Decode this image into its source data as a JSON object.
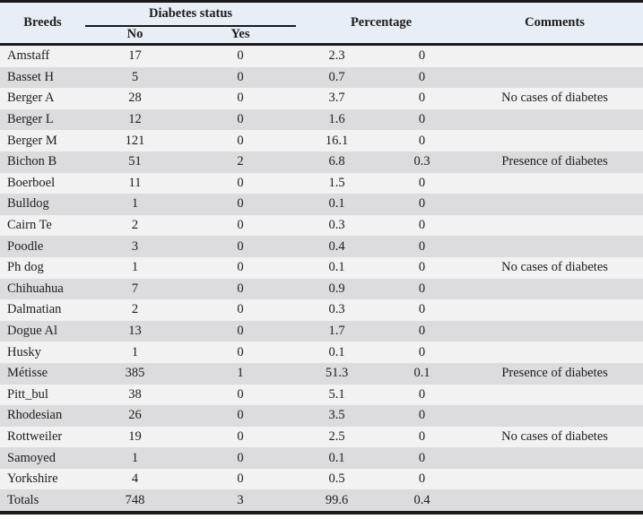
{
  "colors": {
    "header_bg": "#e8eef6",
    "row_light": "#f2f2f3",
    "row_dark": "#dcdcde",
    "rule": "#1a1a1a",
    "text": "#1c1c1c"
  },
  "table": {
    "headers": {
      "breeds": "Breeds",
      "diabetes_status": "Diabetes status",
      "no": "No",
      "yes": "Yes",
      "percentage": "Percentage",
      "comments": "Comments"
    },
    "rows": [
      {
        "breed": "Amstaff",
        "no": "17",
        "yes": "0",
        "pct_no": "2.3",
        "pct_yes": "0",
        "comment": ""
      },
      {
        "breed": "Basset H",
        "no": "5",
        "yes": "0",
        "pct_no": "0.7",
        "pct_yes": "0",
        "comment": ""
      },
      {
        "breed": "Berger A",
        "no": "28",
        "yes": "0",
        "pct_no": "3.7",
        "pct_yes": "0",
        "comment": "No cases of diabetes"
      },
      {
        "breed": "Berger L",
        "no": "12",
        "yes": "0",
        "pct_no": "1.6",
        "pct_yes": "0",
        "comment": ""
      },
      {
        "breed": "Berger M",
        "no": "121",
        "yes": "0",
        "pct_no": "16.1",
        "pct_yes": "0",
        "comment": ""
      },
      {
        "breed": "Bichon B",
        "no": "51",
        "yes": "2",
        "pct_no": "6.8",
        "pct_yes": "0.3",
        "comment": "Presence of diabetes"
      },
      {
        "breed": "Boerboel",
        "no": "11",
        "yes": "0",
        "pct_no": "1.5",
        "pct_yes": "0",
        "comment": ""
      },
      {
        "breed": "Bulldog",
        "no": "1",
        "yes": "0",
        "pct_no": "0.1",
        "pct_yes": "0",
        "comment": ""
      },
      {
        "breed": "Cairn Te",
        "no": "2",
        "yes": "0",
        "pct_no": "0.3",
        "pct_yes": "0",
        "comment": ""
      },
      {
        "breed": "Poodle",
        "no": "3",
        "yes": "0",
        "pct_no": "0.4",
        "pct_yes": "0",
        "comment": ""
      },
      {
        "breed": "Ph dog",
        "no": "1",
        "yes": "0",
        "pct_no": "0.1",
        "pct_yes": "0",
        "comment": "No cases of diabetes"
      },
      {
        "breed": "Chihuahua",
        "no": "7",
        "yes": "0",
        "pct_no": "0.9",
        "pct_yes": "0",
        "comment": ""
      },
      {
        "breed": "Dalmatian",
        "no": "2",
        "yes": "0",
        "pct_no": "0.3",
        "pct_yes": "0",
        "comment": ""
      },
      {
        "breed": "Dogue Al",
        "no": "13",
        "yes": "0",
        "pct_no": "1.7",
        "pct_yes": "0",
        "comment": ""
      },
      {
        "breed": "Husky",
        "no": "1",
        "yes": "0",
        "pct_no": "0.1",
        "pct_yes": "0",
        "comment": ""
      },
      {
        "breed": "Métisse",
        "no": "385",
        "yes": "1",
        "pct_no": "51.3",
        "pct_yes": "0.1",
        "comment": "Presence of diabetes"
      },
      {
        "breed": "Pitt_bul",
        "no": "38",
        "yes": "0",
        "pct_no": "5.1",
        "pct_yes": "0",
        "comment": ""
      },
      {
        "breed": "Rhodesian",
        "no": "26",
        "yes": "0",
        "pct_no": "3.5",
        "pct_yes": "0",
        "comment": ""
      },
      {
        "breed": "Rottweiler",
        "no": "19",
        "yes": "0",
        "pct_no": "2.5",
        "pct_yes": "0",
        "comment": "No cases of diabetes"
      },
      {
        "breed": "Samoyed",
        "no": "1",
        "yes": "0",
        "pct_no": "0.1",
        "pct_yes": "0",
        "comment": ""
      },
      {
        "breed": "Yorkshire",
        "no": "4",
        "yes": "0",
        "pct_no": "0.5",
        "pct_yes": "0",
        "comment": ""
      }
    ],
    "totals": {
      "breed": "Totals",
      "no": "748",
      "yes": "3",
      "pct_no": "99.6",
      "pct_yes": "0.4",
      "comment": ""
    }
  }
}
